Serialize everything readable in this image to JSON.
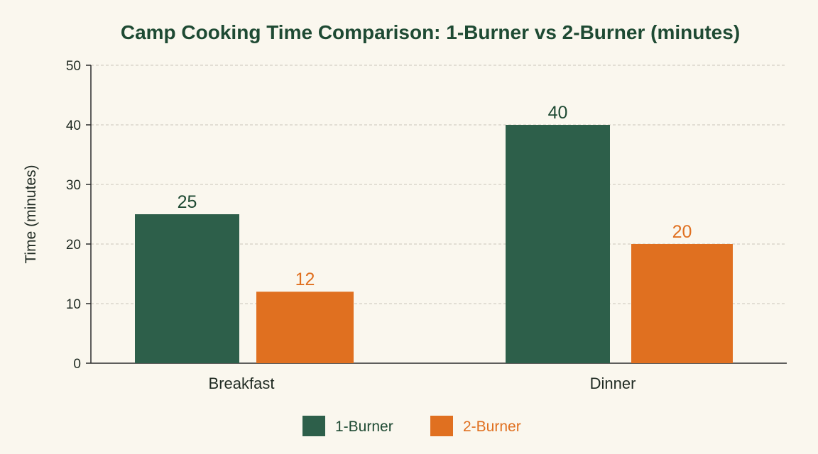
{
  "chart_data": {
    "type": "bar",
    "title": "Camp Cooking Time Comparison: 1-Burner vs 2-Burner (minutes)",
    "xlabel": "",
    "ylabel": "Time (minutes)",
    "categories": [
      "Breakfast",
      "Dinner"
    ],
    "series": [
      {
        "name": "1-Burner",
        "values": [
          25,
          40
        ],
        "color": "#2d5f4a"
      },
      {
        "name": "2-Burner",
        "values": [
          12,
          20
        ],
        "color": "#e07020"
      }
    ],
    "ylim": [
      0,
      50
    ],
    "yticks": [
      0,
      10,
      20,
      30,
      40,
      50
    ],
    "grid": true,
    "legend_position": "bottom-center",
    "data_labels": true
  },
  "colors": {
    "background": "#faf7ee",
    "title": "#1e4a33",
    "text": "#1f2a22",
    "grid": "#c9c6bb",
    "axis": "#2b2b2b"
  }
}
